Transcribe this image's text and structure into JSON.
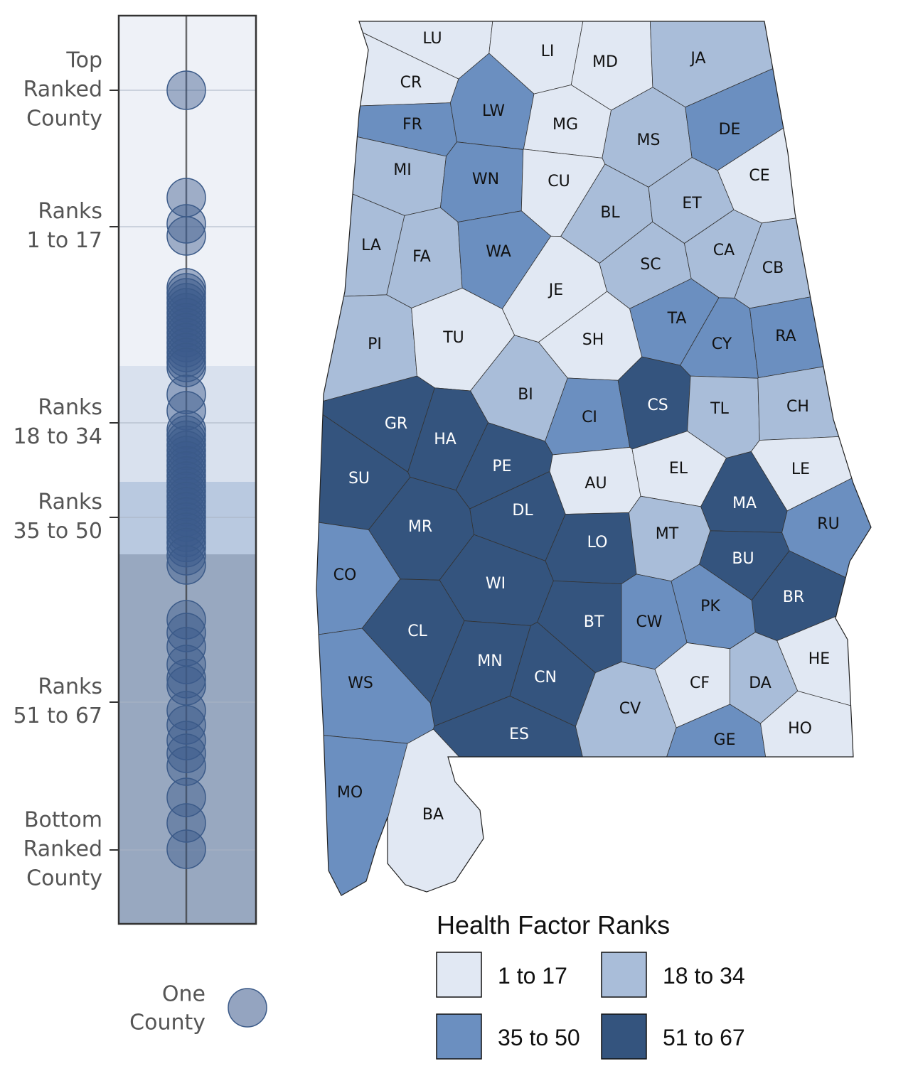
{
  "legend": {
    "title": "Health Factor Ranks",
    "groups": [
      {
        "label": "1 to 17",
        "color": "#e1e8f3"
      },
      {
        "label": "18 to 34",
        "color": "#a9bdd9"
      },
      {
        "label": "35 to 50",
        "color": "#6b8fc0"
      },
      {
        "label": "51 to 67",
        "color": "#34547e"
      }
    ]
  },
  "strip": {
    "labels": [
      {
        "lines": [
          "Top",
          "Ranked",
          "County"
        ]
      },
      {
        "lines": [
          "Ranks",
          "1 to 17"
        ]
      },
      {
        "lines": [
          "Ranks",
          "18 to 34"
        ]
      },
      {
        "lines": [
          "Ranks",
          "35 to 50"
        ]
      },
      {
        "lines": [
          "Ranks",
          "51 to 67"
        ]
      },
      {
        "lines": [
          "Bottom",
          "Ranked",
          "County"
        ]
      }
    ],
    "dot_legend": [
      "One",
      "County"
    ]
  },
  "counties": [
    {
      "label": "LU",
      "group": 0
    },
    {
      "label": "LI",
      "group": 0
    },
    {
      "label": "MD",
      "group": 0
    },
    {
      "label": "JA",
      "group": 1
    },
    {
      "label": "CR",
      "group": 0
    },
    {
      "label": "FR",
      "group": 2
    },
    {
      "label": "LW",
      "group": 2
    },
    {
      "label": "MG",
      "group": 0
    },
    {
      "label": "MS",
      "group": 1
    },
    {
      "label": "DE",
      "group": 2
    },
    {
      "label": "CE",
      "group": 0
    },
    {
      "label": "MI",
      "group": 1
    },
    {
      "label": "WN",
      "group": 2
    },
    {
      "label": "CU",
      "group": 0
    },
    {
      "label": "BL",
      "group": 1
    },
    {
      "label": "ET",
      "group": 1
    },
    {
      "label": "LA",
      "group": 1
    },
    {
      "label": "FA",
      "group": 1
    },
    {
      "label": "WA",
      "group": 2
    },
    {
      "label": "JE",
      "group": 0
    },
    {
      "label": "SC",
      "group": 1
    },
    {
      "label": "CA",
      "group": 1
    },
    {
      "label": "CB",
      "group": 1
    },
    {
      "label": "TA",
      "group": 2
    },
    {
      "label": "CY",
      "group": 2
    },
    {
      "label": "RA",
      "group": 2
    },
    {
      "label": "PI",
      "group": 1
    },
    {
      "label": "TU",
      "group": 0
    },
    {
      "label": "SH",
      "group": 0
    },
    {
      "label": "BI",
      "group": 1
    },
    {
      "label": "CI",
      "group": 2
    },
    {
      "label": "CS",
      "group": 3
    },
    {
      "label": "TL",
      "group": 1
    },
    {
      "label": "CH",
      "group": 1
    },
    {
      "label": "GR",
      "group": 3
    },
    {
      "label": "HA",
      "group": 3
    },
    {
      "label": "PE",
      "group": 3
    },
    {
      "label": "SU",
      "group": 3
    },
    {
      "label": "AU",
      "group": 0
    },
    {
      "label": "EL",
      "group": 0
    },
    {
      "label": "LE",
      "group": 0
    },
    {
      "label": "MA",
      "group": 3
    },
    {
      "label": "DL",
      "group": 3
    },
    {
      "label": "MR",
      "group": 3
    },
    {
      "label": "LO",
      "group": 3
    },
    {
      "label": "MT",
      "group": 1
    },
    {
      "label": "RU",
      "group": 2
    },
    {
      "label": "BU",
      "group": 3
    },
    {
      "label": "CO",
      "group": 2
    },
    {
      "label": "WI",
      "group": 3
    },
    {
      "label": "BR",
      "group": 3
    },
    {
      "label": "PK",
      "group": 2
    },
    {
      "label": "CL",
      "group": 3
    },
    {
      "label": "BT",
      "group": 3
    },
    {
      "label": "CW",
      "group": 2
    },
    {
      "label": "MN",
      "group": 3
    },
    {
      "label": "CN",
      "group": 3
    },
    {
      "label": "HE",
      "group": 0
    },
    {
      "label": "WS",
      "group": 2
    },
    {
      "label": "CF",
      "group": 0
    },
    {
      "label": "DA",
      "group": 1
    },
    {
      "label": "CV",
      "group": 1
    },
    {
      "label": "ES",
      "group": 3
    },
    {
      "label": "GE",
      "group": 2
    },
    {
      "label": "HO",
      "group": 0
    },
    {
      "label": "MO",
      "group": 2
    },
    {
      "label": "BA",
      "group": 0
    }
  ]
}
